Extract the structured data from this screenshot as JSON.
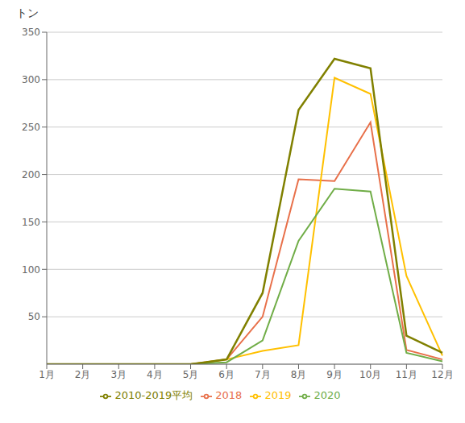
{
  "chart_data": {
    "type": "line",
    "ylabel": "トン",
    "categories": [
      "1月",
      "2月",
      "3月",
      "4月",
      "5月",
      "6月",
      "7月",
      "8月",
      "9月",
      "10月",
      "11月",
      "12月"
    ],
    "series": [
      {
        "name": "2018",
        "color": "#E8704A",
        "values": [
          0,
          0,
          0,
          0,
          0,
          5,
          50,
          195,
          193,
          255,
          15,
          5
        ]
      },
      {
        "name": "2019",
        "color": "#FFC000",
        "values": [
          0,
          0,
          0,
          0,
          0,
          5,
          14,
          20,
          302,
          285,
          93,
          9
        ]
      },
      {
        "name": "2020",
        "color": "#70AD47",
        "values": [
          0,
          0,
          0,
          0,
          0,
          2,
          25,
          130,
          185,
          182,
          12,
          3
        ]
      },
      {
        "name": "2010-2019平均",
        "color": "#808000",
        "values": [
          0,
          0,
          0,
          0,
          0,
          5,
          75,
          268,
          322,
          312,
          30,
          12
        ]
      }
    ],
    "ylim": [
      0,
      350
    ],
    "yticks": [
      50,
      100,
      150,
      200,
      250,
      300,
      350
    ],
    "grid": true,
    "legend": "bottom"
  }
}
